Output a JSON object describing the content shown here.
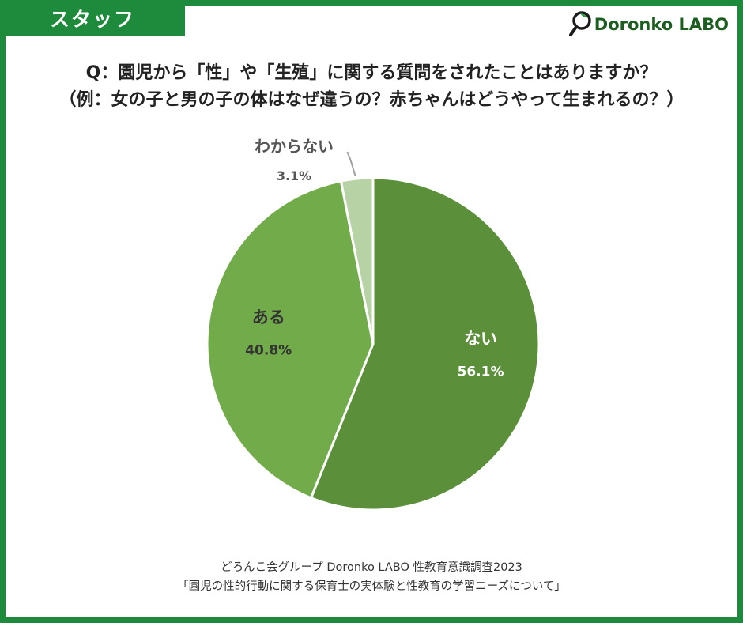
{
  "header": {
    "tag_label": "スタッフ",
    "logo_text": "Doronko LABO"
  },
  "question": {
    "line1": "Q：園児から「性」や「生殖」に関する質問をされたことはありますか？",
    "line2": "（例：女の子と男の子の体はなぜ違うの？赤ちゃんはどうやって生まれるの？）"
  },
  "source": {
    "line1": "どろんこ会グループ Doronko LABO 性教育意識調査2023",
    "line2": "「園児の性的行動に関する保育士の実体験と性教育の学習ニーズについて」"
  },
  "chart_data": {
    "type": "pie",
    "title": "",
    "slices": [
      {
        "label": "ない",
        "value": 56.1,
        "value_text": "56.1%",
        "color": "#5b8f3a"
      },
      {
        "label": "ある",
        "value": 40.8,
        "value_text": "40.8%",
        "color": "#72ab4a"
      },
      {
        "label": "わからない",
        "value": 3.1,
        "value_text": "3.1%",
        "color": "#b7d3a6"
      }
    ],
    "start": "12 o'clock",
    "direction": "clockwise",
    "legend": "none"
  }
}
